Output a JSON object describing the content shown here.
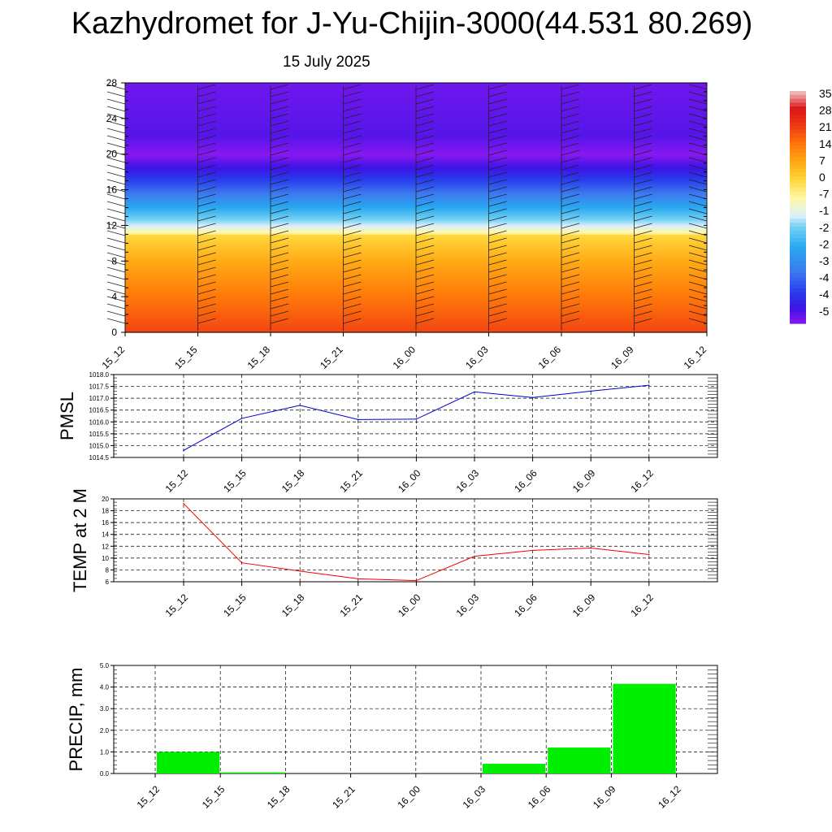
{
  "title": "Kazhydromet for J-Yu-Chijin-3000(44.531 80.269)",
  "subtitle": "15 July 2025",
  "colors": {
    "pmsl_line": "#0000cc",
    "temp_line": "#ee0000",
    "precip_bar": "#00ee00",
    "grid": "#000000"
  },
  "chart_data": [
    {
      "type": "heatmap",
      "name": "vertical-profile",
      "x_categories": [
        "15_12",
        "15_15",
        "15_18",
        "15_21",
        "16_00",
        "16_03",
        "16_06",
        "16_09",
        "16_12"
      ],
      "y_ticks": [
        0,
        4,
        8,
        12,
        16,
        20,
        24,
        28
      ],
      "ylim": [
        0,
        28
      ],
      "colorbar_labels": [
        "35",
        "28",
        "21",
        "14",
        "7",
        "0",
        "-7",
        "-1",
        "-2",
        "-2",
        "-3",
        "-4",
        "-4",
        "-5"
      ],
      "colorbar_range": [
        -56,
        35
      ],
      "temperature_profile": [
        {
          "level": 0,
          "value": 20
        },
        {
          "level": 4,
          "value": 14
        },
        {
          "level": 8,
          "value": 7
        },
        {
          "level": 10.9,
          "value": 0
        },
        {
          "level": 11.2,
          "value": -7
        },
        {
          "level": 12,
          "value": -14
        },
        {
          "level": 14,
          "value": -26
        },
        {
          "level": 16,
          "value": -38
        },
        {
          "level": 18,
          "value": -48
        },
        {
          "level": 20,
          "value": -56
        },
        {
          "level": 22,
          "value": -52
        },
        {
          "level": 28,
          "value": -54
        }
      ],
      "wind_barbs": "present at each time column"
    },
    {
      "type": "line",
      "name": "PMSL",
      "ylabel": "PMSL",
      "categories": [
        "15_12",
        "15_15",
        "15_18",
        "15_21",
        "16_00",
        "16_03",
        "16_06",
        "16_09",
        "16_12"
      ],
      "values": [
        1014.8,
        1016.15,
        1016.7,
        1016.1,
        1016.12,
        1017.27,
        1017.03,
        1017.3,
        1017.55
      ],
      "ylim": [
        1014.5,
        1018.0
      ],
      "yticks": [
        "1014.5",
        "1015.0",
        "1015.5",
        "1016.0",
        "1016.5",
        "1017.0",
        "1017.5",
        "1018.0"
      ],
      "grid": true
    },
    {
      "type": "line",
      "name": "TEMP at 2 M",
      "ylabel": "TEMP at 2 M",
      "categories": [
        "15_12",
        "15_15",
        "15_18",
        "15_21",
        "16_00",
        "16_03",
        "16_06",
        "16_09",
        "16_12"
      ],
      "values": [
        19.2,
        9.2,
        7.8,
        6.5,
        6.2,
        10.3,
        11.3,
        11.7,
        10.6
      ],
      "ylim": [
        6,
        20
      ],
      "yticks": [
        "6",
        "8",
        "10",
        "12",
        "14",
        "16",
        "18",
        "20"
      ],
      "grid": true
    },
    {
      "type": "bar",
      "name": "PRECIP, mm",
      "ylabel": "PRECIP, mm",
      "categories": [
        "15_12",
        "15_15",
        "15_18",
        "15_21",
        "16_00",
        "16_03",
        "16_06",
        "16_09",
        "16_12"
      ],
      "values": [
        0.0,
        1.0,
        0.05,
        0.0,
        0.0,
        0.0,
        0.45,
        1.2,
        4.15
      ],
      "ylim": [
        0,
        5
      ],
      "yticks": [
        "0.0",
        "1.0",
        "2.0",
        "3.0",
        "4.0",
        "5.0"
      ],
      "grid": true
    }
  ]
}
